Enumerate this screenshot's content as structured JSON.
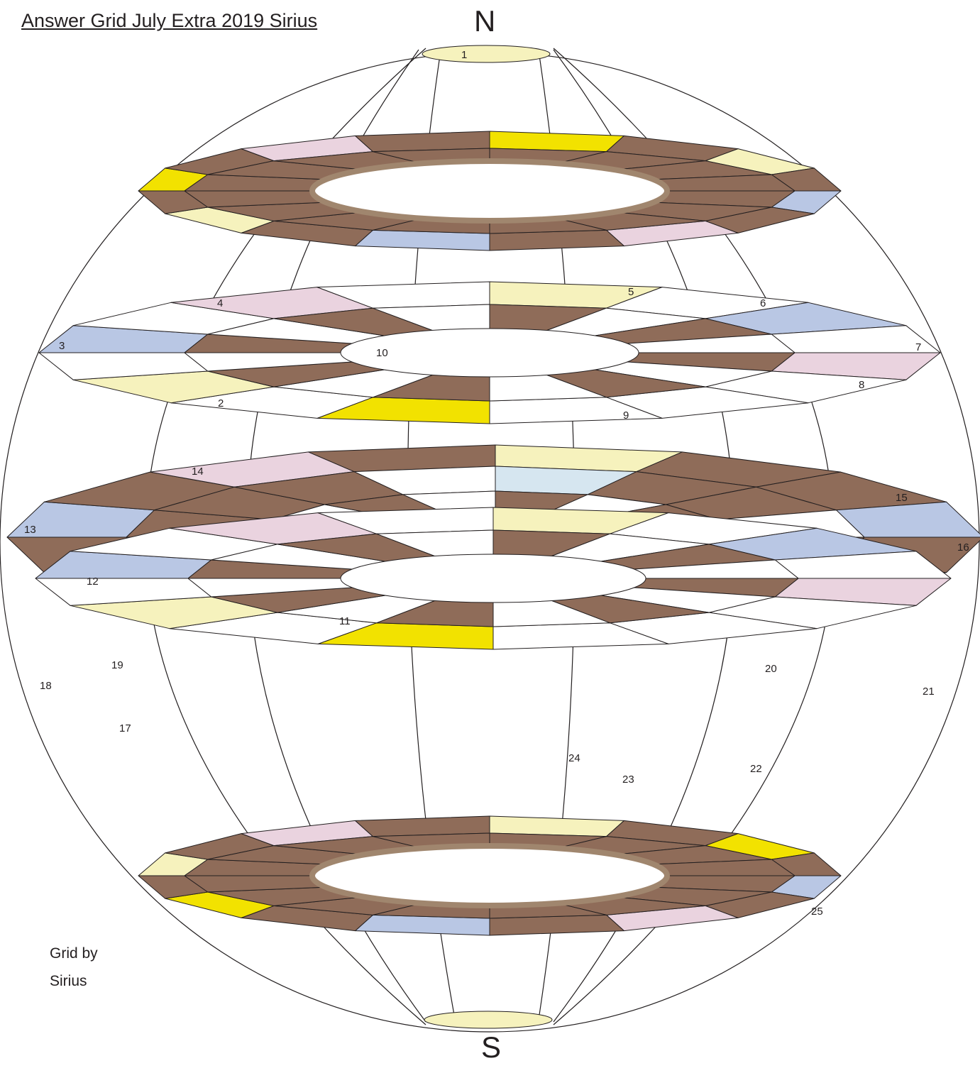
{
  "title": "Answer Grid July Extra 2019 Sirius",
  "compass": {
    "north": "N",
    "south": "S"
  },
  "credit": {
    "line1": "Grid by",
    "line2": "Sirius"
  },
  "colors": {
    "brown": "#8f6c59",
    "pale_yellow": "#f6f2bd",
    "yellow": "#f2e200",
    "blue": "#b9c7e4",
    "pink": "#ead3df",
    "light_blue": "#d6e6f0",
    "white": "#ffffff",
    "ring_outline": "#a0866e",
    "line": "#231f20"
  },
  "clue_numbers": [
    {
      "id": "1",
      "label": "1"
    },
    {
      "id": "2",
      "label": "2"
    },
    {
      "id": "3",
      "label": "3"
    },
    {
      "id": "4",
      "label": "4"
    },
    {
      "id": "5",
      "label": "5"
    },
    {
      "id": "6",
      "label": "6"
    },
    {
      "id": "7",
      "label": "7"
    },
    {
      "id": "8",
      "label": "8"
    },
    {
      "id": "9",
      "label": "9"
    },
    {
      "id": "10",
      "label": "10"
    },
    {
      "id": "11",
      "label": "11"
    },
    {
      "id": "12",
      "label": "12"
    },
    {
      "id": "13",
      "label": "13"
    },
    {
      "id": "14",
      "label": "14"
    },
    {
      "id": "15",
      "label": "15"
    },
    {
      "id": "16",
      "label": "16"
    },
    {
      "id": "17",
      "label": "17"
    },
    {
      "id": "18",
      "label": "18"
    },
    {
      "id": "19",
      "label": "19"
    },
    {
      "id": "20",
      "label": "20"
    },
    {
      "id": "21",
      "label": "21"
    },
    {
      "id": "22",
      "label": "22"
    },
    {
      "id": "23",
      "label": "23"
    },
    {
      "id": "24",
      "label": "24"
    },
    {
      "id": "25",
      "label": "25"
    }
  ]
}
